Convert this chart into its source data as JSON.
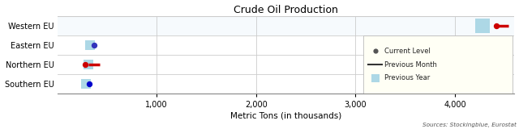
{
  "title": "Crude Oil Production",
  "xlabel": "Metric Tons (in thousands)",
  "source_text": "Sources: Stockingblue, Eurostat",
  "categories": [
    "Western EU",
    "Eastern EU",
    "Northern EU",
    "Southern EU"
  ],
  "xlim": [
    0,
    4600
  ],
  "xticks": [
    1000,
    2000,
    3000,
    4000
  ],
  "xticklabels": [
    "1,000",
    "2,000",
    "3,000",
    "4,000"
  ],
  "current_level": [
    4420,
    370,
    280,
    320
  ],
  "previous_month": [
    4480,
    null,
    370,
    null
  ],
  "previous_year": [
    4280,
    330,
    310,
    290
  ],
  "current_colors": [
    "#cc0000",
    "#3333bb",
    "#cc0000",
    "#0000cc"
  ],
  "prev_month_colors": [
    "#cc0000",
    null,
    "#cc0000",
    null
  ],
  "prev_year_color": "#add8e6",
  "background_color": "#ffffff",
  "legend_bg": "#fffff5",
  "grid_color": "#cccccc",
  "western_eu_bg": "#ddeef8"
}
